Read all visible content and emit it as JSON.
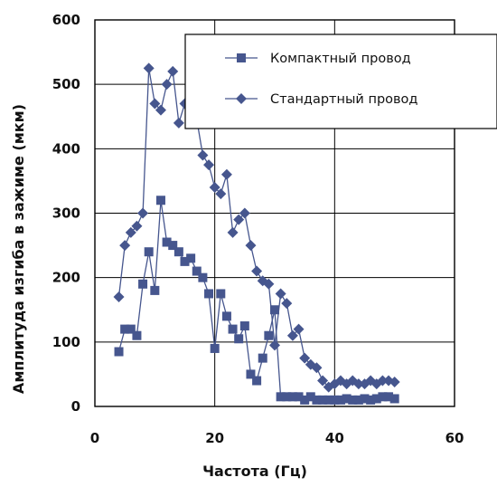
{
  "chart_data": {
    "type": "line",
    "xlabel": "Частота (Гц)",
    "ylabel": "Амплитуда изгиба в зажиме (мкм)",
    "xlim": [
      0,
      60
    ],
    "ylim": [
      0,
      600
    ],
    "x_ticks": [
      0,
      20,
      40,
      60
    ],
    "y_ticks": [
      0,
      100,
      200,
      300,
      400,
      500,
      600
    ],
    "grid": true,
    "legend_position": "top-right",
    "series": [
      {
        "name": "Компактный провод",
        "marker": "square",
        "color": "#46568e",
        "x": [
          4,
          5,
          6,
          7,
          8,
          9,
          10,
          11,
          12,
          13,
          14,
          15,
          16,
          17,
          18,
          19,
          20,
          21,
          22,
          23,
          24,
          25,
          26,
          27,
          28,
          29,
          30,
          31,
          32,
          33,
          34,
          35,
          36,
          37,
          38,
          39,
          40,
          41,
          42,
          43,
          44,
          45,
          46,
          47,
          48,
          49,
          50
        ],
        "values": [
          85,
          120,
          120,
          110,
          190,
          240,
          180,
          320,
          255,
          250,
          240,
          225,
          230,
          210,
          200,
          175,
          90,
          175,
          140,
          120,
          105,
          125,
          50,
          40,
          75,
          110,
          150,
          15,
          15,
          15,
          15,
          10,
          15,
          10,
          10,
          10,
          10,
          10,
          12,
          10,
          10,
          12,
          10,
          12,
          15,
          15,
          12
        ]
      },
      {
        "name": "Стандартный провод",
        "marker": "diamond",
        "color": "#46568e",
        "x": [
          4,
          5,
          6,
          7,
          8,
          9,
          10,
          11,
          12,
          13,
          14,
          15,
          16,
          17,
          18,
          19,
          20,
          21,
          22,
          23,
          24,
          25,
          26,
          27,
          28,
          29,
          30,
          31,
          32,
          33,
          34,
          35,
          36,
          37,
          38,
          39,
          40,
          41,
          42,
          43,
          44,
          45,
          46,
          47,
          48,
          49,
          50
        ],
        "values": [
          170,
          250,
          270,
          280,
          300,
          525,
          470,
          460,
          500,
          520,
          440,
          470,
          470,
          445,
          390,
          375,
          340,
          330,
          360,
          270,
          290,
          300,
          250,
          210,
          195,
          190,
          95,
          175,
          160,
          110,
          120,
          75,
          65,
          60,
          40,
          30,
          35,
          40,
          35,
          40,
          35,
          35,
          40,
          35,
          40,
          40,
          38
        ]
      }
    ]
  }
}
